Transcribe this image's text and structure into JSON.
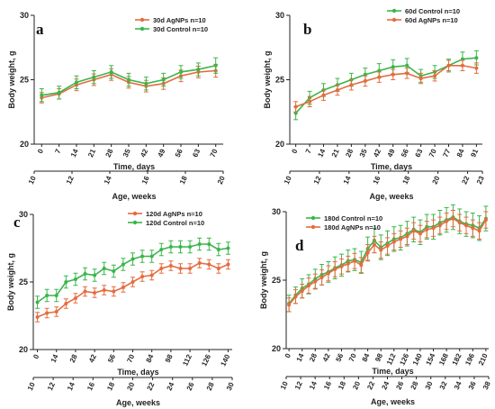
{
  "colors": {
    "control": "#3ab54a",
    "agnp": "#e46c3f",
    "axis": "#222222"
  },
  "chart_data": [
    {
      "type": "line",
      "panel_label": "a",
      "xlabel": "Time, days",
      "secondary_xlabel": "Age, weeks",
      "ylabel": "Body weight, g",
      "x": [
        0,
        7,
        14,
        21,
        28,
        35,
        42,
        49,
        56,
        63,
        70
      ],
      "x_tick_labels": [
        "0",
        "7",
        "14",
        "21",
        "28",
        "35",
        "42",
        "49",
        "56",
        "63",
        "70"
      ],
      "xlim": [
        -3,
        73
      ],
      "weeks_ticks": [
        10,
        12,
        14,
        16,
        18,
        20
      ],
      "weeks_tick_labels": [
        "10",
        "12",
        "14",
        "16",
        "18",
        "20"
      ],
      "weeks_range": [
        10,
        20
      ],
      "ylim": [
        20,
        30
      ],
      "yticks": [
        20,
        25,
        30
      ],
      "y_tick_labels": [
        "20",
        "25",
        "30"
      ],
      "legend_position": "top-right",
      "series": [
        {
          "name": "30d AgNPs",
          "name_n": "n=10",
          "color_key": "agnp",
          "values": [
            23.6,
            23.9,
            24.6,
            25.0,
            25.4,
            24.8,
            24.5,
            24.7,
            25.3,
            25.6,
            25.7
          ],
          "errors": [
            0.4,
            0.4,
            0.45,
            0.45,
            0.45,
            0.45,
            0.45,
            0.45,
            0.45,
            0.45,
            0.5
          ]
        },
        {
          "name": "30d Control",
          "name_n": "n=10",
          "color_key": "control",
          "values": [
            23.8,
            24.0,
            24.8,
            25.2,
            25.6,
            25.0,
            24.7,
            25.0,
            25.6,
            25.8,
            26.1
          ],
          "errors": [
            0.5,
            0.5,
            0.5,
            0.5,
            0.5,
            0.5,
            0.5,
            0.5,
            0.5,
            0.5,
            0.6
          ]
        }
      ]
    },
    {
      "type": "line",
      "panel_label": "b",
      "xlabel": "Time, days",
      "secondary_xlabel": "Age, weeks",
      "ylabel": "Body weight, g",
      "x": [
        0,
        7,
        14,
        21,
        28,
        35,
        42,
        49,
        56,
        63,
        70,
        77,
        84,
        91
      ],
      "x_tick_labels": [
        "0",
        "7",
        "14",
        "21",
        "28",
        "35",
        "42",
        "49",
        "56",
        "63",
        "70",
        "77",
        "84",
        "91"
      ],
      "xlim": [
        -3,
        94
      ],
      "weeks_ticks": [
        10,
        12,
        14,
        16,
        18,
        20,
        22,
        23
      ],
      "weeks_tick_labels": [
        "10",
        "12",
        "14",
        "16",
        "18",
        "20",
        "22",
        "23"
      ],
      "weeks_range": [
        10,
        23
      ],
      "ylim": [
        20,
        30
      ],
      "yticks": [
        20,
        25,
        30
      ],
      "y_tick_labels": [
        "20",
        "25",
        "30"
      ],
      "legend_position": "top-right",
      "series": [
        {
          "name": "60d Control",
          "name_n": "n=10",
          "color_key": "control",
          "values": [
            22.4,
            23.6,
            24.2,
            24.6,
            25.0,
            25.4,
            25.7,
            26.0,
            26.1,
            25.3,
            25.6,
            26.1,
            26.6,
            26.7
          ],
          "errors": [
            0.5,
            0.5,
            0.5,
            0.5,
            0.5,
            0.5,
            0.55,
            0.55,
            0.55,
            0.5,
            0.5,
            0.5,
            0.55,
            0.55
          ]
        },
        {
          "name": "60d AgNPs",
          "name_n": "n=10",
          "color_key": "agnp",
          "values": [
            22.9,
            23.3,
            23.8,
            24.2,
            24.6,
            24.9,
            25.2,
            25.4,
            25.5,
            25.1,
            25.3,
            26.1,
            26.1,
            25.9
          ],
          "errors": [
            0.4,
            0.4,
            0.4,
            0.4,
            0.4,
            0.4,
            0.4,
            0.4,
            0.4,
            0.4,
            0.4,
            0.4,
            0.4,
            0.4
          ]
        }
      ]
    },
    {
      "type": "line",
      "panel_label": "c",
      "xlabel": "Time, days",
      "secondary_xlabel": "Age, weeks",
      "ylabel": "Body weight, g",
      "x": [
        0,
        7,
        14,
        21,
        28,
        35,
        42,
        49,
        56,
        63,
        70,
        77,
        84,
        91,
        98,
        105,
        112,
        119,
        126,
        133,
        140
      ],
      "x_tick_labels": [
        "0",
        "14",
        "28",
        "42",
        "56",
        "70",
        "84",
        "98",
        "112",
        "126",
        "140"
      ],
      "x_tick_values": [
        0,
        14,
        28,
        42,
        56,
        70,
        84,
        98,
        112,
        126,
        140
      ],
      "xlim": [
        -3,
        143
      ],
      "weeks_ticks": [
        10,
        12,
        14,
        16,
        18,
        20,
        22,
        24,
        26,
        28,
        30
      ],
      "weeks_tick_labels": [
        "10",
        "12",
        "14",
        "16",
        "18",
        "20",
        "22",
        "24",
        "26",
        "28",
        "30"
      ],
      "weeks_range": [
        10,
        30
      ],
      "ylim": [
        20,
        30
      ],
      "yticks": [
        20,
        25,
        30
      ],
      "y_tick_labels": [
        "20",
        "25",
        "30"
      ],
      "legend_position": "top-right",
      "series": [
        {
          "name": "120d AgNPs",
          "name_n": "n=10",
          "color_key": "agnp",
          "values": [
            22.4,
            22.7,
            22.8,
            23.4,
            23.8,
            24.3,
            24.2,
            24.4,
            24.3,
            24.6,
            25.0,
            25.4,
            25.5,
            26.0,
            26.2,
            26.0,
            26.0,
            26.4,
            26.3,
            26.0,
            26.3
          ],
          "errors": [
            0.35,
            0.35,
            0.35,
            0.35,
            0.35,
            0.35,
            0.35,
            0.35,
            0.35,
            0.35,
            0.35,
            0.35,
            0.35,
            0.35,
            0.35,
            0.35,
            0.35,
            0.35,
            0.35,
            0.35,
            0.35
          ]
        },
        {
          "name": "120d Control",
          "name_n": "n=10",
          "color_key": "control",
          "values": [
            23.5,
            24.0,
            24.0,
            25.0,
            25.2,
            25.6,
            25.5,
            26.0,
            25.8,
            26.3,
            26.7,
            26.9,
            26.9,
            27.4,
            27.6,
            27.6,
            27.6,
            27.8,
            27.8,
            27.4,
            27.5
          ],
          "errors": [
            0.45,
            0.45,
            0.45,
            0.45,
            0.45,
            0.45,
            0.45,
            0.45,
            0.45,
            0.45,
            0.45,
            0.45,
            0.45,
            0.45,
            0.45,
            0.45,
            0.45,
            0.45,
            0.45,
            0.45,
            0.45
          ]
        }
      ]
    },
    {
      "type": "line",
      "panel_label": "d",
      "xlabel": "Time, days",
      "secondary_xlabel": "Age, weeks",
      "ylabel": "Body weight, g",
      "x": [
        0,
        7,
        14,
        21,
        28,
        35,
        42,
        49,
        56,
        63,
        70,
        77,
        84,
        91,
        98,
        105,
        112,
        119,
        126,
        133,
        140,
        147,
        154,
        161,
        168,
        175,
        182,
        189,
        196,
        203,
        210
      ],
      "x_tick_labels": [
        "0",
        "14",
        "28",
        "42",
        "56",
        "70",
        "84",
        "98",
        "112",
        "126",
        "140",
        "154",
        "168",
        "182",
        "196",
        "210"
      ],
      "x_tick_values": [
        0,
        14,
        28,
        42,
        56,
        70,
        84,
        98,
        112,
        126,
        140,
        154,
        168,
        182,
        196,
        210
      ],
      "xlim": [
        -3,
        213
      ],
      "weeks_ticks": [
        10,
        12,
        14,
        16,
        18,
        20,
        22,
        24,
        26,
        28,
        30,
        32,
        34,
        36,
        38
      ],
      "weeks_tick_labels": [
        "10",
        "12",
        "14",
        "16",
        "18",
        "20",
        "22",
        "24",
        "26",
        "28",
        "30",
        "32",
        "34",
        "36",
        "38"
      ],
      "weeks_range": [
        10,
        38
      ],
      "ylim": [
        20,
        30
      ],
      "yticks": [
        20,
        25,
        30
      ],
      "y_tick_labels": [
        "20",
        "25",
        "30"
      ],
      "legend_position": "top-left",
      "series": [
        {
          "name": "180d Control",
          "name_n": "n=10",
          "color_key": "control",
          "values": [
            23.3,
            23.9,
            24.4,
            24.7,
            25.1,
            25.4,
            25.6,
            25.9,
            26.1,
            26.4,
            26.5,
            26.3,
            27.3,
            27.9,
            27.4,
            27.7,
            28.0,
            28.1,
            28.4,
            28.7,
            28.5,
            28.9,
            28.9,
            29.2,
            29.4,
            29.6,
            29.3,
            29.1,
            29.0,
            28.8,
            29.5
          ],
          "errors": [
            0.6,
            0.6,
            0.7,
            0.7,
            0.7,
            0.75,
            0.75,
            0.8,
            0.8,
            0.8,
            0.8,
            0.8,
            0.85,
            0.9,
            0.9,
            0.9,
            0.9,
            0.9,
            0.9,
            0.9,
            0.9,
            0.9,
            0.9,
            0.9,
            0.9,
            0.9,
            0.9,
            0.9,
            0.9,
            0.9,
            0.9
          ]
        },
        {
          "name": "180d AgNPs",
          "name_n": "n=10",
          "color_key": "agnp",
          "values": [
            23.2,
            23.8,
            24.2,
            24.6,
            24.9,
            25.2,
            25.5,
            25.8,
            26.0,
            26.2,
            26.4,
            26.1,
            27.0,
            27.6,
            27.2,
            27.5,
            27.8,
            28.0,
            28.2,
            28.6,
            28.4,
            28.7,
            28.8,
            29.0,
            29.3,
            29.5,
            29.2,
            29.0,
            28.8,
            28.6,
            29.4
          ],
          "errors": [
            0.5,
            0.5,
            0.5,
            0.55,
            0.55,
            0.55,
            0.55,
            0.55,
            0.55,
            0.55,
            0.55,
            0.55,
            0.6,
            0.6,
            0.6,
            0.6,
            0.6,
            0.6,
            0.6,
            0.6,
            0.6,
            0.6,
            0.6,
            0.6,
            0.6,
            0.6,
            0.6,
            0.6,
            0.6,
            0.6,
            0.6
          ]
        }
      ]
    }
  ]
}
